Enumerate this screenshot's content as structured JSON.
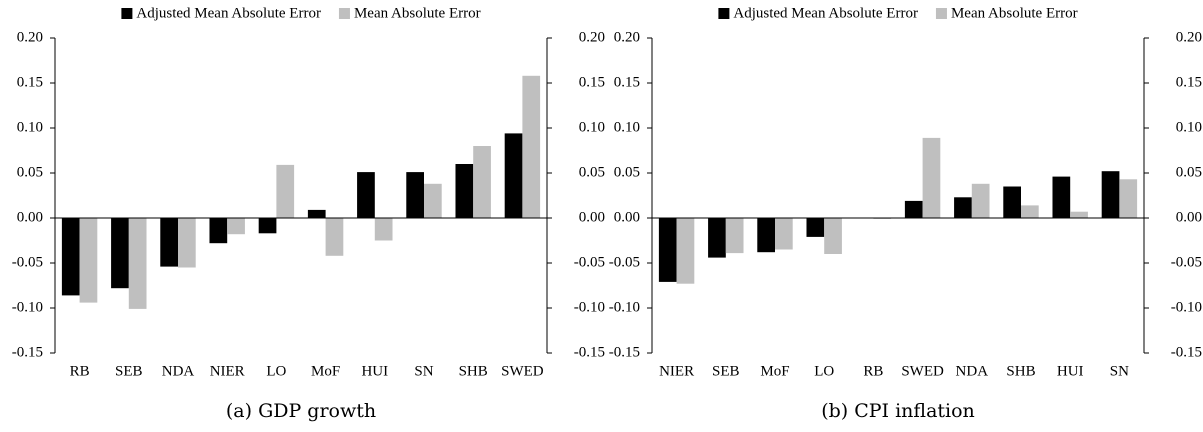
{
  "chart_data": [
    {
      "type": "bar",
      "caption": "(a) GDP growth",
      "categories": [
        "RB",
        "SEB",
        "NDA",
        "NIER",
        "LO",
        "MoF",
        "HUI",
        "SN",
        "SHB",
        "SWED"
      ],
      "series": [
        {
          "name": "Adjusted Mean Absolute Error",
          "color": "#000000",
          "values": [
            -0.086,
            -0.078,
            -0.054,
            -0.028,
            -0.017,
            0.009,
            0.051,
            0.051,
            0.06,
            0.094
          ]
        },
        {
          "name": "Mean Absolute Error",
          "color": "#bfbfbf",
          "values": [
            -0.094,
            -0.101,
            -0.055,
            -0.018,
            0.059,
            -0.042,
            -0.025,
            0.038,
            0.08,
            0.158
          ]
        }
      ],
      "ylim": [
        -0.15,
        0.2
      ],
      "yticks": [
        {
          "value": -0.15,
          "label": "-0.15"
        },
        {
          "value": -0.1,
          "label": "-0.10"
        },
        {
          "value": -0.05,
          "label": "-0.05"
        },
        {
          "value": 0,
          "label": "0.00"
        },
        {
          "value": 0.05,
          "label": "0.05"
        },
        {
          "value": 0.1,
          "label": "0.10"
        },
        {
          "value": 0.15,
          "label": "0.15"
        },
        {
          "value": 0.2,
          "label": "0.20"
        }
      ],
      "y2lim": [
        -0.15,
        0.2
      ],
      "y2ticks": [
        {
          "value": -0.15,
          "label": "-0.15"
        },
        {
          "value": -0.1,
          "label": "-0.10"
        },
        {
          "value": -0.05,
          "label": "-0.05"
        },
        {
          "value": 0,
          "label": "0.00"
        },
        {
          "value": 0.05,
          "label": "0.05"
        },
        {
          "value": 0.1,
          "label": "0.10"
        },
        {
          "value": 0.15,
          "label": "0.15"
        },
        {
          "value": 0.2,
          "label": "0.20"
        }
      ]
    },
    {
      "type": "bar",
      "caption": "(b) CPI inflation",
      "categories": [
        "NIER",
        "SEB",
        "MoF",
        "LO",
        "RB",
        "SWED",
        "NDA",
        "SHB",
        "HUI",
        "SN"
      ],
      "series": [
        {
          "name": "Adjusted Mean Absolute Error",
          "color": "#000000",
          "values": [
            -0.071,
            -0.044,
            -0.038,
            -0.021,
            0,
            0.019,
            0.023,
            0.035,
            0.046,
            0.052
          ]
        },
        {
          "name": "Mean Absolute Error",
          "color": "#bfbfbf",
          "values": [
            -0.073,
            -0.039,
            -0.035,
            -0.04,
            -0.001,
            0.089,
            0.038,
            0.014,
            0.007,
            0.043
          ]
        }
      ],
      "ylim": [
        -0.15,
        0.2
      ],
      "yticks": [
        {
          "value": -0.15,
          "label": "-0.15"
        },
        {
          "value": -0.1,
          "label": "-0.10"
        },
        {
          "value": -0.05,
          "label": "-0.05"
        },
        {
          "value": 0,
          "label": "0.00"
        },
        {
          "value": 0.05,
          "label": "0.05"
        },
        {
          "value": 0.1,
          "label": "0.10"
        },
        {
          "value": 0.15,
          "label": "0.15"
        },
        {
          "value": 0.2,
          "label": "0.20"
        }
      ],
      "y2lim": [
        -0.15,
        0.2
      ],
      "y2ticks": [
        {
          "value": -0.15,
          "label": "-0.15"
        },
        {
          "value": -0.1,
          "label": "-0.10"
        },
        {
          "value": -0.05,
          "label": "-0.05"
        },
        {
          "value": 0,
          "label": "0.00"
        },
        {
          "value": 0.05,
          "label": "0.05"
        },
        {
          "value": 0.1,
          "label": "0.10"
        },
        {
          "value": 0.15,
          "label": "0.15"
        },
        {
          "value": 0.2,
          "label": "0.20"
        }
      ]
    }
  ]
}
